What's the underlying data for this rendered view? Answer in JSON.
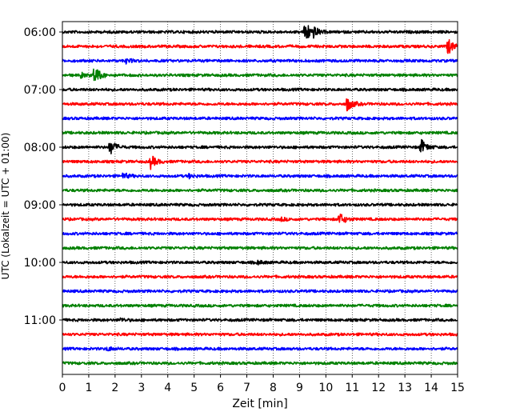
{
  "chart_data": {
    "type": "line",
    "title": "",
    "xlabel": "Zeit  [min]",
    "ylabel": "UTC (Lokalzeit = UTC + 01:00)",
    "xlim": [
      0,
      15
    ],
    "x_ticks": [
      "0",
      "1",
      "2",
      "3",
      "4",
      "5",
      "6",
      "7",
      "8",
      "9",
      "10",
      "11",
      "12",
      "13",
      "14",
      "15"
    ],
    "y_tick_labels": [
      "06:00",
      "07:00",
      "08:00",
      "09:00",
      "10:00",
      "11:00"
    ],
    "grid": "vertical-dotted",
    "trace_interval_min": 15,
    "start_time": "06:00",
    "trace_colors": [
      "#000000",
      "#ff0000",
      "#0000ff",
      "#008000"
    ],
    "traces": [
      {
        "time": "06:00",
        "color": "#000000",
        "events": [
          {
            "t": 9.2,
            "amp": 3.5
          },
          {
            "t": 9.5,
            "amp": 1.2
          }
        ]
      },
      {
        "time": "06:15",
        "color": "#ff0000",
        "events": [
          {
            "t": 14.6,
            "amp": 2.5
          }
        ]
      },
      {
        "time": "06:30",
        "color": "#0000ff",
        "events": [
          {
            "t": 2.4,
            "amp": 0.6
          }
        ]
      },
      {
        "time": "06:45",
        "color": "#008000",
        "events": [
          {
            "t": 1.2,
            "amp": 2.8
          },
          {
            "t": 0.7,
            "amp": 0.6
          }
        ]
      },
      {
        "time": "07:00",
        "color": "#000000",
        "events": []
      },
      {
        "time": "07:15",
        "color": "#ff0000",
        "events": [
          {
            "t": 10.8,
            "amp": 2.0
          }
        ]
      },
      {
        "time": "07:30",
        "color": "#0000ff",
        "events": []
      },
      {
        "time": "07:45",
        "color": "#008000",
        "events": []
      },
      {
        "time": "08:00",
        "color": "#000000",
        "events": [
          {
            "t": 1.8,
            "amp": 2.2
          },
          {
            "t": 13.6,
            "amp": 2.2
          }
        ]
      },
      {
        "time": "08:15",
        "color": "#ff0000",
        "events": [
          {
            "t": 3.35,
            "amp": 1.8
          }
        ]
      },
      {
        "time": "08:30",
        "color": "#0000ff",
        "events": [
          {
            "t": 2.3,
            "amp": 0.8
          },
          {
            "t": 4.8,
            "amp": 0.5
          }
        ]
      },
      {
        "time": "08:45",
        "color": "#008000",
        "events": []
      },
      {
        "time": "09:00",
        "color": "#000000",
        "events": []
      },
      {
        "time": "09:15",
        "color": "#ff0000",
        "events": [
          {
            "t": 10.5,
            "amp": 1.8
          },
          {
            "t": 8.3,
            "amp": 0.4
          }
        ]
      },
      {
        "time": "09:30",
        "color": "#0000ff",
        "events": []
      },
      {
        "time": "09:45",
        "color": "#008000",
        "events": []
      },
      {
        "time": "10:00",
        "color": "#000000",
        "events": [
          {
            "t": 7.4,
            "amp": 0.5
          }
        ]
      },
      {
        "time": "10:15",
        "color": "#ff0000",
        "events": []
      },
      {
        "time": "10:30",
        "color": "#0000ff",
        "events": []
      },
      {
        "time": "10:45",
        "color": "#008000",
        "events": []
      },
      {
        "time": "11:00",
        "color": "#000000",
        "events": [
          {
            "t": 2.2,
            "amp": 0.4
          }
        ]
      },
      {
        "time": "11:15",
        "color": "#ff0000",
        "events": []
      },
      {
        "time": "11:30",
        "color": "#0000ff",
        "events": [
          {
            "t": 1.7,
            "amp": 0.5
          }
        ]
      },
      {
        "time": "11:45",
        "color": "#008000",
        "events": []
      }
    ]
  }
}
